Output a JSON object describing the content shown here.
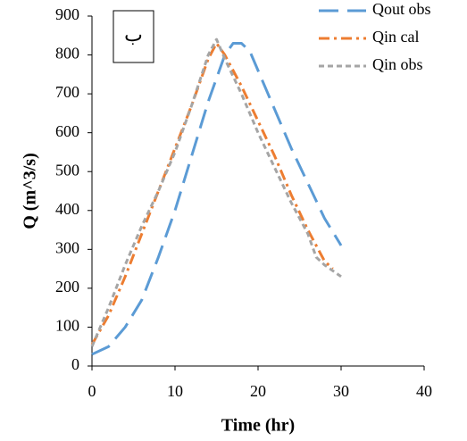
{
  "chart_data": {
    "type": "line",
    "xlabel": "Time (hr)",
    "ylabel": "Q (m^3/s)",
    "annotation": "ب",
    "xlim": [
      0,
      40
    ],
    "xticks": [
      0,
      10,
      20,
      30,
      40
    ],
    "ylim": [
      0,
      900
    ],
    "yticks": [
      0,
      100,
      200,
      300,
      400,
      500,
      600,
      700,
      800,
      900
    ],
    "legend": "top-right",
    "series": [
      {
        "name": "Qout obs",
        "color": "#5b9bd5",
        "dash": "22 10",
        "x": [
          0,
          2,
          4,
          6,
          8,
          10,
          12,
          14,
          16,
          17,
          18,
          19,
          20,
          22,
          24,
          26,
          28,
          30
        ],
        "values": [
          30,
          50,
          100,
          170,
          280,
          400,
          540,
          680,
          800,
          830,
          830,
          810,
          760,
          660,
          560,
          470,
          380,
          310
        ]
      },
      {
        "name": "Qin cal",
        "color": "#ed7d31",
        "dash": "12 5 3 5",
        "x": [
          0,
          2,
          4,
          6,
          8,
          10,
          12,
          14,
          15,
          16,
          18,
          20,
          22,
          24,
          26,
          28,
          29
        ],
        "values": [
          55,
          130,
          230,
          340,
          450,
          560,
          670,
          790,
          830,
          800,
          720,
          630,
          540,
          440,
          350,
          270,
          250
        ]
      },
      {
        "name": "Qin obs",
        "color": "#a5a5a5",
        "dash": "6 4",
        "x": [
          0,
          2,
          4,
          6,
          8,
          10,
          12,
          14,
          15,
          16,
          18,
          20,
          22,
          24,
          26,
          27,
          28,
          30
        ],
        "values": [
          50,
          150,
          260,
          360,
          450,
          550,
          670,
          800,
          840,
          790,
          700,
          600,
          510,
          420,
          340,
          280,
          260,
          230
        ]
      }
    ]
  }
}
